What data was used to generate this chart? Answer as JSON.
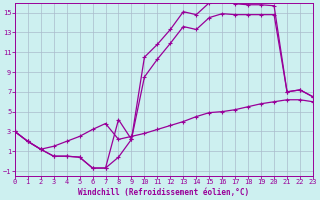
{
  "xlabel": "Windchill (Refroidissement éolien,°C)",
  "bg_color": "#cdf0f0",
  "line_color": "#990099",
  "grid_color": "#aabbcc",
  "xlim": [
    0,
    23
  ],
  "ylim": [
    -1.5,
    16
  ],
  "xticks": [
    0,
    1,
    2,
    3,
    4,
    5,
    6,
    7,
    8,
    9,
    10,
    11,
    12,
    13,
    14,
    15,
    16,
    17,
    18,
    19,
    20,
    21,
    22,
    23
  ],
  "yticks": [
    -1,
    1,
    3,
    5,
    7,
    9,
    11,
    13,
    15
  ],
  "line1_x": [
    0,
    1,
    2,
    3,
    4,
    5,
    6,
    7,
    8,
    9,
    10,
    11,
    12,
    13,
    14,
    15,
    16,
    17,
    18,
    19,
    20,
    21,
    22,
    23
  ],
  "line1_y": [
    3.0,
    2.0,
    1.2,
    0.5,
    0.5,
    0.4,
    -0.7,
    -0.7,
    4.2,
    2.2,
    10.5,
    11.8,
    13.3,
    15.1,
    14.8,
    16.0,
    16.2,
    15.9,
    15.8,
    15.8,
    15.7,
    7.0,
    7.2,
    6.5
  ],
  "line2_x": [
    0,
    1,
    2,
    3,
    4,
    5,
    6,
    7,
    8,
    9,
    10,
    11,
    12,
    13,
    14,
    15,
    16,
    17,
    18,
    19,
    20,
    21,
    22,
    23
  ],
  "line2_y": [
    3.0,
    2.0,
    1.2,
    0.5,
    0.5,
    0.4,
    -0.7,
    -0.7,
    0.4,
    2.2,
    8.5,
    10.3,
    11.9,
    13.6,
    13.3,
    14.5,
    14.9,
    14.8,
    14.8,
    14.8,
    14.8,
    7.0,
    7.2,
    6.5
  ],
  "line3_x": [
    0,
    1,
    2,
    3,
    4,
    5,
    6,
    7,
    8,
    9,
    10,
    11,
    12,
    13,
    14,
    15,
    16,
    17,
    18,
    19,
    20,
    21,
    22,
    23
  ],
  "line3_y": [
    3.0,
    2.0,
    1.2,
    1.5,
    2.0,
    2.5,
    3.2,
    3.8,
    2.2,
    2.5,
    2.8,
    3.2,
    3.6,
    4.0,
    4.5,
    4.9,
    5.0,
    5.2,
    5.5,
    5.8,
    6.0,
    6.2,
    6.2,
    6.0
  ],
  "tick_fontsize": 5,
  "xlabel_fontsize": 5.5
}
